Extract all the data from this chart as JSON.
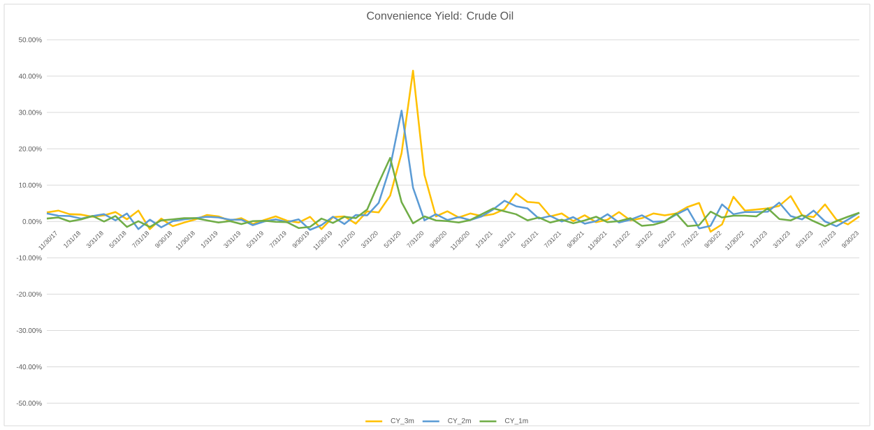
{
  "chart_data": {
    "type": "line",
    "title": "Convenience Yield: Crude Oil",
    "categories": [
      "11/30/17",
      null,
      "1/31/18",
      null,
      "3/31/18",
      null,
      "5/31/18",
      null,
      "7/31/18",
      null,
      "9/30/18",
      null,
      "11/30/18",
      null,
      "1/31/19",
      null,
      "3/31/19",
      null,
      "5/31/19",
      null,
      "7/31/19",
      null,
      "9/30/19",
      null,
      "11/30/19",
      null,
      "1/31/20",
      null,
      "3/31/20",
      null,
      "5/31/20",
      null,
      "7/31/20",
      null,
      "9/30/20",
      null,
      "11/30/20",
      null,
      "1/31/21",
      null,
      "3/31/21",
      null,
      "5/31/21",
      null,
      "7/31/21",
      null,
      "9/30/21",
      null,
      "11/30/21",
      null,
      "1/31/22",
      null,
      "3/31/22",
      null,
      "5/31/22",
      null,
      "7/31/22",
      null,
      "9/30/22",
      null,
      "11/30/22",
      null,
      "1/31/23",
      null,
      "3/31/23",
      null,
      "5/31/23",
      null,
      "7/31/23",
      null,
      "9/30/23",
      null
    ],
    "series": [
      {
        "name": "CY_3m",
        "color": "#ffc000",
        "values": [
          2.5,
          3.0,
          2.0,
          1.9,
          1.3,
          1.7,
          2.6,
          0.6,
          3.0,
          -2.1,
          0.8,
          -1.3,
          -0.3,
          0.6,
          1.8,
          1.4,
          0.2,
          0.9,
          -0.7,
          0.4,
          1.4,
          0.2,
          -0.3,
          1.3,
          -2.1,
          1.2,
          1.4,
          -0.6,
          2.8,
          2.5,
          7.1,
          18.8,
          41.5,
          12.8,
          1.4,
          2.8,
          1.1,
          2.2,
          1.5,
          2.0,
          3.4,
          7.7,
          5.4,
          5.1,
          1.4,
          2.2,
          0.1,
          1.7,
          -0.2,
          0.5,
          2.6,
          0.3,
          0.9,
          2.2,
          1.7,
          2.2,
          4.0,
          5.1,
          -2.8,
          -0.8,
          6.8,
          3.0,
          3.3,
          3.6,
          4.3,
          7.0,
          1.7,
          1.2,
          4.7,
          0.5,
          -0.8,
          1.4
        ]
      },
      {
        "name": "CY_2m",
        "color": "#5b9bd5",
        "values": [
          2.2,
          1.6,
          1.5,
          0.8,
          1.5,
          2.0,
          0.3,
          2.2,
          -2.1,
          0.5,
          -1.6,
          0.1,
          0.6,
          0.9,
          1.3,
          1.1,
          0.5,
          0.5,
          -1.0,
          0.0,
          0.6,
          -0.2,
          0.6,
          -2.3,
          -1.0,
          1.3,
          -0.7,
          1.8,
          1.7,
          5.1,
          15.0,
          30.5,
          9.3,
          0.3,
          2.0,
          0.4,
          1.2,
          0.4,
          1.4,
          3.3,
          5.7,
          4.2,
          3.6,
          0.8,
          1.5,
          0.0,
          1.2,
          -0.6,
          0.1,
          2.0,
          -0.3,
          0.5,
          1.7,
          -0.1,
          0.1,
          1.9,
          3.5,
          -1.9,
          -1.2,
          4.7,
          2.0,
          2.6,
          2.6,
          2.7,
          5.2,
          1.5,
          0.6,
          3.0,
          0.0,
          -1.3,
          0.5,
          2.4
        ]
      },
      {
        "name": "CY_1m",
        "color": "#70ad47",
        "values": [
          0.8,
          1.1,
          0.0,
          0.6,
          1.5,
          0.0,
          1.5,
          -1.5,
          0.1,
          -1.5,
          0.3,
          0.6,
          0.9,
          0.9,
          0.3,
          -0.3,
          0.1,
          -0.7,
          0.1,
          0.2,
          -0.1,
          -0.2,
          -1.8,
          -1.5,
          0.8,
          -0.4,
          1.3,
          0.9,
          3.3,
          10.6,
          17.5,
          5.3,
          -0.5,
          1.4,
          0.3,
          0.1,
          -0.3,
          0.4,
          2.0,
          3.6,
          2.8,
          2.0,
          0.3,
          1.1,
          -0.3,
          0.5,
          -0.5,
          0.3,
          1.3,
          -0.2,
          0.1,
          0.9,
          -1.2,
          -0.9,
          0.0,
          2.2,
          -1.3,
          -1.0,
          2.7,
          1.1,
          1.6,
          1.6,
          1.4,
          3.6,
          0.7,
          0.3,
          1.7,
          0.1,
          -1.3,
          0.1,
          1.3,
          2.4
        ]
      }
    ],
    "ylim": [
      -50,
      50
    ],
    "yticks": [
      {
        "value": -50,
        "label": "-50.00%"
      },
      {
        "value": -40,
        "label": "-40.00%"
      },
      {
        "value": -30,
        "label": "-30.00%"
      },
      {
        "value": -20,
        "label": "-20.00%"
      },
      {
        "value": -10,
        "label": "-10.00%"
      },
      {
        "value": 0,
        "label": "0.00%"
      },
      {
        "value": 10,
        "label": "10.00%"
      },
      {
        "value": 20,
        "label": "20.00%"
      },
      {
        "value": 30,
        "label": "30.00%"
      },
      {
        "value": 40,
        "label": "40.00%"
      },
      {
        "value": 50,
        "label": "50.00%"
      }
    ],
    "grid": "y",
    "legend": "bottom"
  }
}
